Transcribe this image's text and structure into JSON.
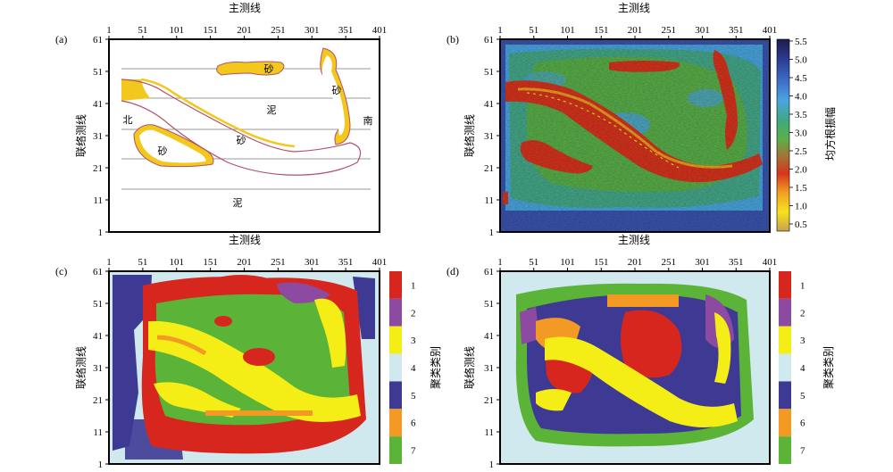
{
  "chart_data": [
    {
      "panel_label": "(a)",
      "type": "heatmap",
      "xlabel": "主测线",
      "ylabel": "联络测线",
      "xticks": [
        1,
        51,
        101,
        151,
        201,
        251,
        301,
        351,
        401
      ],
      "yticks": [
        1,
        11,
        21,
        31,
        41,
        51,
        61
      ],
      "xlim": [
        1,
        401
      ],
      "ylim": [
        1,
        61
      ],
      "annotations": [
        "砂",
        "砂",
        "泥",
        "北",
        "南",
        "砂",
        "砂",
        "泥"
      ],
      "gridlines_y": [
        14,
        24,
        33,
        43,
        53
      ],
      "colors": {
        "sand_fill": "#f2c81c",
        "channel_outline": "#b4506e",
        "grid": "#9a9a9a"
      }
    },
    {
      "panel_label": "(b)",
      "type": "heatmap",
      "xlabel": "主测线",
      "ylabel": "联络测线",
      "xticks": [
        1,
        51,
        101,
        151,
        201,
        251,
        301,
        351,
        401
      ],
      "yticks": [
        1,
        11,
        21,
        31,
        41,
        51,
        61
      ],
      "xlim": [
        1,
        401
      ],
      "ylim": [
        1,
        61
      ],
      "colorbar": {
        "label": "均方根振幅",
        "ticks": [
          "5.5",
          "5.0",
          "4.5",
          "4.0",
          "3.5",
          "3.0",
          "2.5",
          "2.0",
          "1.5",
          "1.0",
          "0.5"
        ],
        "range": [
          0.5,
          5.5
        ],
        "colors": [
          "#1c1d4a",
          "#2a3a8f",
          "#3f6fc9",
          "#4aa6e0",
          "#3fa882",
          "#5ab04a",
          "#9c7a3a",
          "#d8341e",
          "#f0a020",
          "#f7e21c",
          "#c9a050"
        ]
      }
    },
    {
      "panel_label": "(c)",
      "type": "heatmap",
      "xlabel": "主测线",
      "ylabel": "联络测线",
      "xticks": [
        1,
        51,
        101,
        151,
        201,
        251,
        301,
        351,
        401
      ],
      "yticks": [
        1,
        11,
        21,
        31,
        41,
        51,
        61
      ],
      "xlim": [
        1,
        401
      ],
      "ylim": [
        1,
        61
      ],
      "legend": {
        "label": "聚类类别",
        "classes": [
          "1",
          "2",
          "3",
          "4",
          "5",
          "6",
          "7"
        ],
        "colors": [
          "#d7261e",
          "#8c4aa0",
          "#f5ee16",
          "#cfe9ef",
          "#3e3a94",
          "#f39a24",
          "#5bb338"
        ]
      }
    },
    {
      "panel_label": "(d)",
      "type": "heatmap",
      "xlabel": "主测线",
      "ylabel": "联络测线",
      "xticks": [
        1,
        51,
        101,
        151,
        201,
        251,
        301,
        351,
        401
      ],
      "yticks": [
        1,
        11,
        21,
        31,
        41,
        51,
        61
      ],
      "xlim": [
        1,
        401
      ],
      "ylim": [
        1,
        61
      ],
      "legend": {
        "label": "聚类类别",
        "classes": [
          "1",
          "2",
          "3",
          "4",
          "5",
          "6",
          "7"
        ],
        "colors": [
          "#d7261e",
          "#8c4aa0",
          "#f5ee16",
          "#cfe9ef",
          "#3e3a94",
          "#f39a24",
          "#5bb338"
        ]
      }
    }
  ]
}
